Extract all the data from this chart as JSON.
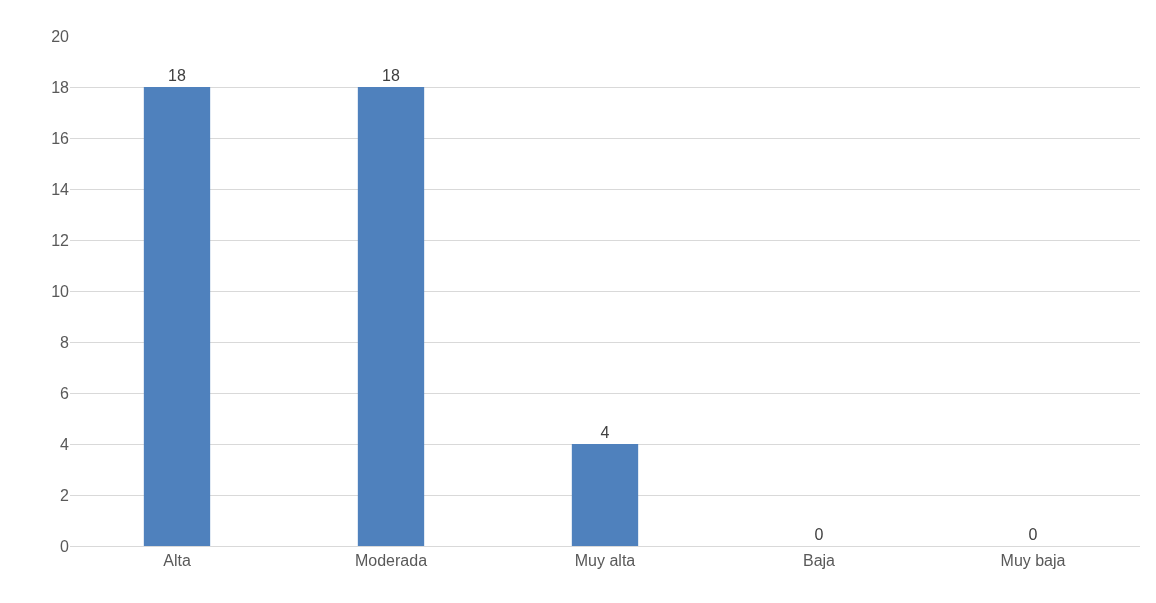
{
  "chart_data": {
    "type": "bar",
    "categories": [
      "Alta",
      "Moderada",
      "Muy alta",
      "Baja",
      "Muy baja"
    ],
    "values": [
      18,
      18,
      4,
      0,
      0
    ],
    "color": "#4f81bd",
    "ylim": [
      0,
      20
    ],
    "yticks": [
      0,
      2,
      4,
      6,
      8,
      10,
      12,
      14,
      16,
      18,
      20
    ],
    "grid": "y",
    "data_labels": true
  }
}
